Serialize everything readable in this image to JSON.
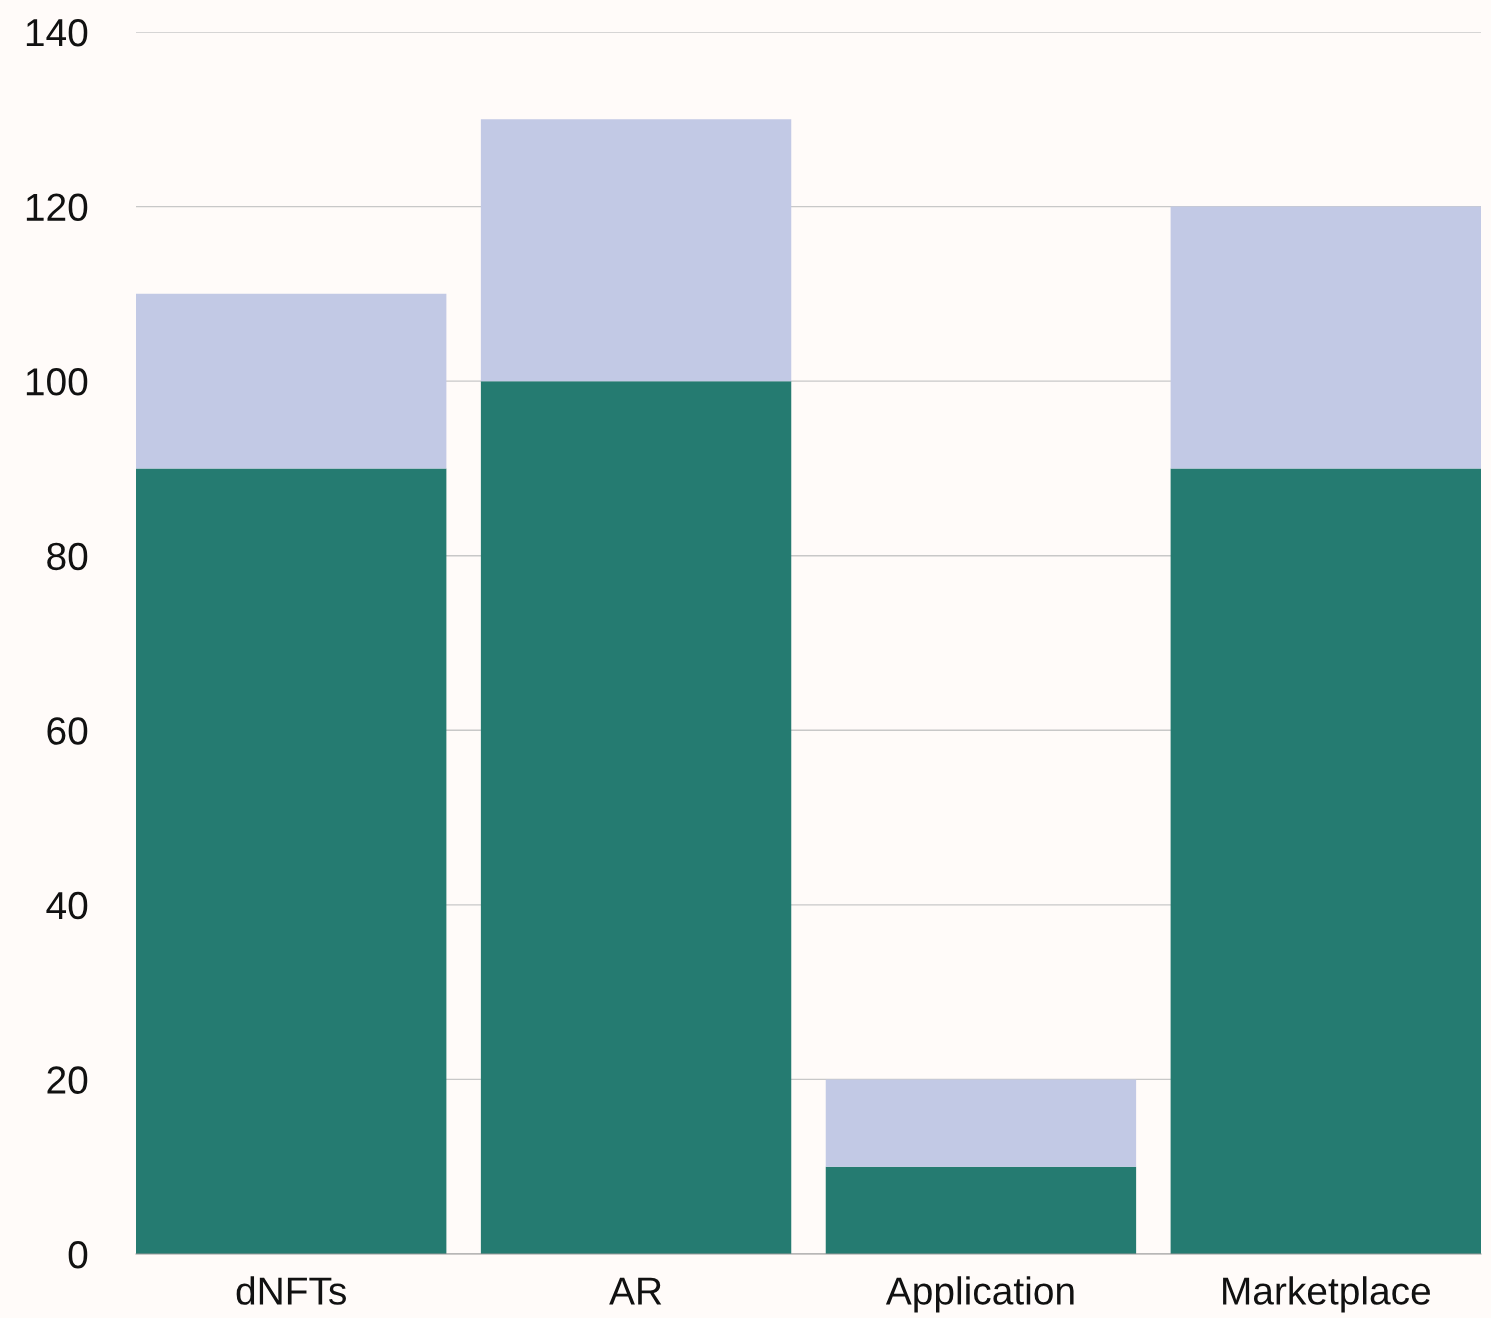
{
  "chart_data": {
    "type": "bar",
    "stacked": true,
    "categories": [
      "dNFTs",
      "AR",
      "Application",
      "Marketplace"
    ],
    "series": [
      {
        "color": "#257b71",
        "values": [
          90,
          100,
          10,
          90
        ]
      },
      {
        "color": "#c2c9e5",
        "values": [
          20,
          30,
          10,
          30
        ]
      }
    ],
    "ylim": [
      0,
      140
    ],
    "yticks": [
      0,
      20,
      40,
      60,
      80,
      100,
      120,
      140
    ],
    "grid": "y"
  }
}
